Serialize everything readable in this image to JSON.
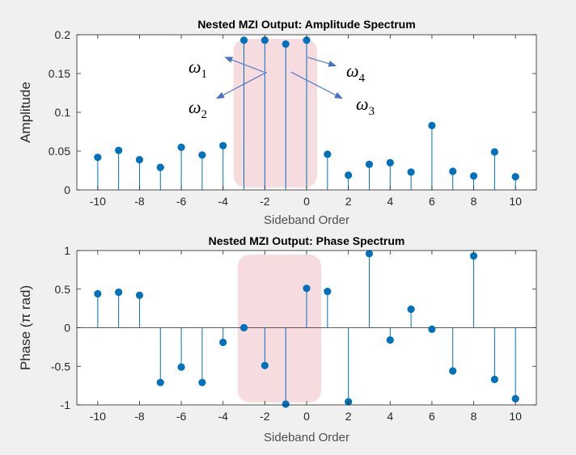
{
  "chart_data": [
    {
      "type": "stem",
      "title": "Nested MZI Output: Amplitude Spectrum",
      "xlabel": "Sideband Order",
      "ylabel": "Amplitude",
      "xlim": [
        -11,
        11
      ],
      "ylim": [
        0,
        0.2
      ],
      "xticks": [
        -10,
        -8,
        -6,
        -4,
        -2,
        0,
        2,
        4,
        6,
        8,
        10
      ],
      "xtick_labels": [
        "-10",
        "-8",
        "-6",
        "-4",
        "-2",
        "0",
        "2",
        "4",
        "6",
        "8",
        "10"
      ],
      "yticks": [
        0,
        0.05,
        0.1,
        0.15,
        0.2
      ],
      "ytick_labels": [
        "0",
        "0.05",
        "0.1",
        "0.15",
        "0.2"
      ],
      "x": [
        -10,
        -9,
        -8,
        -7,
        -6,
        -5,
        -4,
        -3,
        -2,
        -1,
        0,
        1,
        2,
        3,
        4,
        5,
        6,
        7,
        8,
        9,
        10
      ],
      "values": [
        0.042,
        0.051,
        0.039,
        0.029,
        0.055,
        0.045,
        0.057,
        0.193,
        0.193,
        0.188,
        0.193,
        0.046,
        0.019,
        0.033,
        0.035,
        0.023,
        0.083,
        0.024,
        0.018,
        0.049,
        0.017
      ],
      "highlight_band": [
        -3.5,
        0.5
      ],
      "annotations": [
        {
          "base": "ω",
          "sub": "1",
          "arrow_from": [
            -2.05,
            0.152
          ],
          "arrow_to": [
            -3.9,
            0.171
          ]
        },
        {
          "base": "ω",
          "sub": "4",
          "arrow_from": [
            0.05,
            0.171
          ],
          "arrow_to": [
            1.4,
            0.16
          ]
        },
        {
          "base": "ω",
          "sub": "2",
          "arrow_from": [
            -1.9,
            0.152
          ],
          "arrow_to": [
            -4.3,
            0.118
          ]
        },
        {
          "base": "ω",
          "sub": "3",
          "arrow_from": [
            -0.75,
            0.152
          ],
          "arrow_to": [
            1.7,
            0.118
          ]
        }
      ]
    },
    {
      "type": "stem",
      "title": "Nested MZI Output: Phase Spectrum",
      "xlabel": "Sideband Order",
      "ylabel": "Phase (π rad)",
      "xlim": [
        -11,
        11
      ],
      "ylim": [
        -1,
        1
      ],
      "xticks": [
        -10,
        -8,
        -6,
        -4,
        -2,
        0,
        2,
        4,
        6,
        8,
        10
      ],
      "xtick_labels": [
        "-10",
        "-8",
        "-6",
        "-4",
        "-2",
        "0",
        "2",
        "4",
        "6",
        "8",
        "10"
      ],
      "yticks": [
        -1,
        -0.5,
        0,
        0.5,
        1
      ],
      "ytick_labels": [
        "-1",
        "-0.5",
        "0",
        "0.5",
        "1"
      ],
      "x": [
        -10,
        -9,
        -8,
        -7,
        -6,
        -5,
        -4,
        -3,
        -2,
        -1,
        0,
        1,
        2,
        3,
        4,
        5,
        6,
        7,
        8,
        9,
        10
      ],
      "values": [
        0.44,
        0.46,
        0.42,
        -0.71,
        -0.51,
        -0.71,
        -0.19,
        0.0,
        -0.49,
        -0.99,
        0.51,
        0.47,
        -0.96,
        0.96,
        -0.16,
        0.24,
        -0.02,
        -0.56,
        0.93,
        -0.67,
        -0.92
      ],
      "highlight_band": [
        -3.3,
        0.7
      ]
    }
  ],
  "colors": {
    "stem": "#0072bd",
    "highlight": "#f2c4c9",
    "annotation_arrow": "#4472c4",
    "background": "#f0f0f0",
    "axes": "#262626"
  }
}
